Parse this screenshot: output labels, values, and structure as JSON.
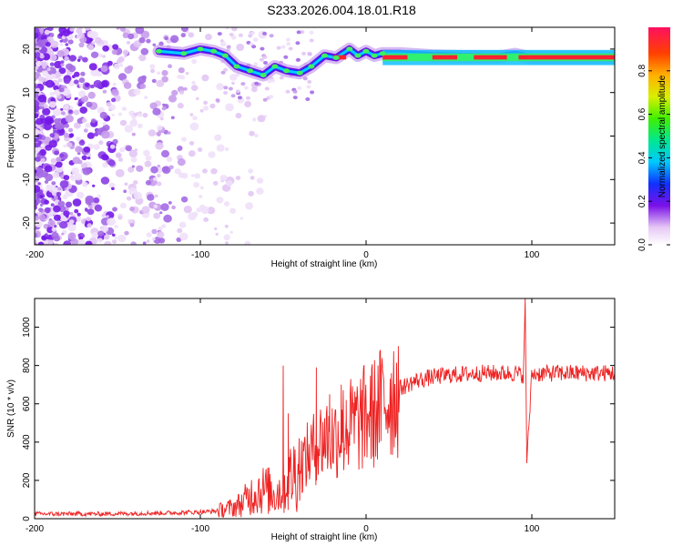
{
  "title": "S233.2026.004.18.01.R18",
  "chart_data": [
    {
      "type": "heatmap",
      "title": "S233.2026.004.18.01.R18",
      "xlabel": "Height of straight line (km)",
      "ylabel": "Frequency (Hz)",
      "xlim": [
        -200,
        150
      ],
      "ylim": [
        -25,
        25
      ],
      "xticks": [
        -200,
        -100,
        0,
        100
      ],
      "yticks": [
        20,
        10,
        0,
        -10,
        -20
      ],
      "colorbar": {
        "label": "Normalized spectral amplitude",
        "range": [
          0,
          1
        ],
        "ticks": [
          0.0,
          0.2,
          0.4,
          0.6,
          0.8
        ]
      },
      "ridge": {
        "name": "",
        "x": [
          -125,
          -110,
          -100,
          -92,
          -85,
          -78,
          -70,
          -62,
          -55,
          -48,
          -40,
          -33,
          -25,
          -18,
          -10,
          -5,
          0,
          5,
          10,
          20,
          40,
          60,
          80,
          90,
          100,
          120,
          150
        ],
        "y": [
          19.5,
          19,
          20,
          19.5,
          18.5,
          16,
          15,
          14,
          16,
          15,
          14.5,
          16,
          18.5,
          18,
          20,
          18.5,
          19.5,
          18.5,
          19,
          19,
          18.5,
          18.3,
          18.2,
          18.8,
          18,
          18,
          18
        ]
      }
    },
    {
      "type": "line",
      "xlabel": "Height of straight line (km)",
      "ylabel": "SNR (10 * v/v)",
      "xlim": [
        -200,
        150
      ],
      "ylim": [
        0,
        1150
      ],
      "xticks": [
        -200,
        -100,
        0,
        100
      ],
      "yticks": [
        0,
        200,
        400,
        600,
        800,
        1000
      ],
      "series": [
        {
          "name": "",
          "color": "#ee2222",
          "x": [
            -200,
            -180,
            -160,
            -140,
            -120,
            -100,
            -90,
            -80,
            -75,
            -70,
            -65,
            -60,
            -55,
            -50,
            -45,
            -40,
            -35,
            -30,
            -25,
            -20,
            -15,
            -10,
            -5,
            0,
            5,
            10,
            15,
            20,
            25,
            30,
            40,
            50,
            60,
            70,
            80,
            90,
            95,
            96,
            97,
            100,
            110,
            120,
            130,
            140,
            150
          ],
          "y": [
            25,
            25,
            25,
            28,
            30,
            35,
            40,
            60,
            80,
            120,
            150,
            150,
            130,
            160,
            220,
            280,
            330,
            380,
            430,
            420,
            460,
            480,
            500,
            530,
            550,
            600,
            650,
            680,
            700,
            720,
            740,
            750,
            755,
            760,
            760,
            760,
            750,
            1150,
            290,
            755,
            760,
            760,
            760,
            760,
            760
          ],
          "spikes": [
            {
              "x": -50,
              "y": 800
            },
            {
              "x": -47,
              "y": 550
            },
            {
              "x": -30,
              "y": 790
            },
            {
              "x": -22,
              "y": 650
            },
            {
              "x": -15,
              "y": 700
            },
            {
              "x": -12,
              "y": 620
            },
            {
              "x": -8,
              "y": 620
            },
            {
              "x": -2,
              "y": 520
            },
            {
              "x": 2,
              "y": 560
            },
            {
              "x": 96,
              "y": 1150
            },
            {
              "x": 97,
              "y": 290
            }
          ]
        }
      ]
    }
  ],
  "colors": {
    "line": "#ee2222",
    "axis": "#000000"
  }
}
